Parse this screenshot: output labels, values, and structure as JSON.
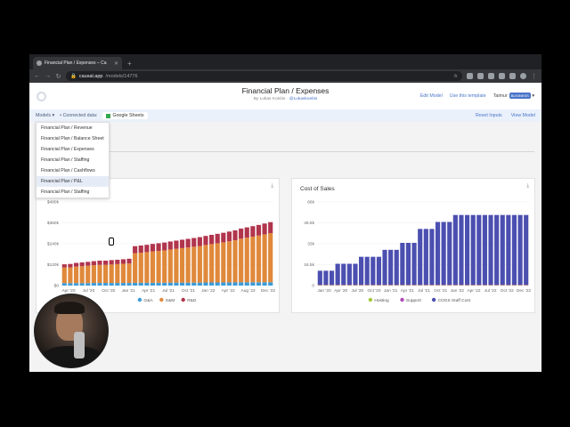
{
  "browser": {
    "tab_title": "Financial Plan / Expenses – Ca",
    "url_host": "causal.app",
    "url_path": "/models/14776"
  },
  "header": {
    "title": "Financial Plan / Expenses",
    "byline_prefix": "By Lukas Koebis · ",
    "byline_handle": "@Lukaskoebis",
    "edit_model": "Edit Model",
    "use_template": "Use this template",
    "user": "Taimur",
    "user_badge": "BUSINESS"
  },
  "toolbar": {
    "models_label": "Models",
    "connected_label": "Connected data:",
    "sheets_label": "Google Sheets",
    "reset_inputs": "Reset Inputs",
    "view_model": "View Model"
  },
  "models_menu": [
    "Financial Plan / Revenue",
    "Financial Plan / Balance Sheet",
    "Financial Plan / Expenses",
    "Financial Plan / Staffing",
    "Financial Plan / Cashflows",
    "Financial Plan / P&L",
    "Financial Plan / Staffing"
  ],
  "menu_highlight_index": 5,
  "colors": {
    "ga": "#3b9bd8",
    "sm": "#e0893b",
    "rd": "#b1344d",
    "hosting": "#a3c93a",
    "support": "#b04bb8",
    "cogs": "#4b4fb0"
  },
  "chart_data": [
    {
      "type": "bar",
      "stacked": true,
      "title": "",
      "x_ticks": [
        "Apr '20",
        "Jul '20",
        "Oct '20",
        "Jan '21",
        "Apr '21",
        "Jul '21",
        "Oct '21",
        "Jan '22",
        "Apr '22",
        "Aug '22",
        "Dec '22"
      ],
      "y_ticks": [
        "$0",
        "$120k",
        "$240k",
        "$360k",
        "$480k"
      ],
      "ylim": [
        0,
        480000
      ],
      "legend": [
        "G&A",
        "S&M",
        "R&D"
      ],
      "series": [
        {
          "name": "G&A",
          "values": [
            14000,
            14000,
            14000,
            14000,
            14000,
            15000,
            15000,
            15000,
            15000,
            15000,
            15000,
            15000,
            16000,
            16000,
            16000,
            16000,
            16000,
            16000,
            17000,
            17000,
            17000,
            17000,
            17000,
            17000,
            18000,
            18000,
            18000,
            18000,
            18000,
            18000,
            19000,
            19000,
            19000,
            19000,
            19000,
            19000
          ]
        },
        {
          "name": "S&M",
          "values": [
            90000,
            90000,
            95000,
            97000,
            100000,
            102000,
            104000,
            104000,
            106000,
            108000,
            110000,
            112000,
            170000,
            173000,
            176000,
            180000,
            183000,
            186000,
            190000,
            194000,
            198000,
            202000,
            206000,
            210000,
            215000,
            220000,
            225000,
            230000,
            236000,
            242000,
            250000,
            256000,
            262000,
            268000,
            275000,
            282000
          ]
        },
        {
          "name": "R&D",
          "values": [
            18000,
            20000,
            21000,
            22000,
            22000,
            23000,
            24000,
            24000,
            25000,
            25000,
            26000,
            27000,
            40000,
            41000,
            42000,
            43000,
            44000,
            45000,
            46000,
            47000,
            48000,
            49000,
            50000,
            51000,
            52000,
            53000,
            54000,
            55000,
            56000,
            57000,
            58000,
            59000,
            60000,
            61000,
            62000,
            63000
          ]
        }
      ]
    },
    {
      "type": "bar",
      "stacked": true,
      "title": "Cost of Sales",
      "x_ticks": [
        "Jan '20",
        "Apr '20",
        "Jul '20",
        "Oct '20",
        "Jan '21",
        "Apr '21",
        "Jul '21",
        "Oct '21",
        "Jan '22",
        "Apr '22",
        "Jul '22",
        "Oct '22",
        "Dec '22"
      ],
      "y_ticks": [
        "0",
        "16.5k",
        "33k",
        "49.5k",
        "66k"
      ],
      "ylim": [
        0,
        66000
      ],
      "legend": [
        "Hosting",
        "Support",
        "COGS Staff Cost"
      ],
      "series": [
        {
          "name": "Hosting",
          "values": [
            300,
            300,
            300,
            300,
            300,
            300,
            300,
            300,
            300,
            300,
            300,
            300,
            300,
            300,
            300,
            300,
            300,
            300,
            300,
            300,
            300,
            300,
            300,
            300,
            300,
            300,
            300,
            300,
            300,
            300,
            300,
            300,
            300,
            300,
            300,
            300
          ]
        },
        {
          "name": "Support",
          "values": [
            400,
            400,
            400,
            400,
            400,
            400,
            400,
            400,
            400,
            400,
            400,
            400,
            400,
            400,
            400,
            400,
            400,
            400,
            400,
            400,
            400,
            400,
            400,
            400,
            400,
            400,
            400,
            400,
            400,
            400,
            400,
            400,
            400,
            400,
            400,
            400
          ]
        },
        {
          "name": "COGS Staff Cost",
          "values": [
            11000,
            11000,
            11000,
            16500,
            16500,
            16500,
            16500,
            22000,
            22000,
            22000,
            22000,
            27500,
            27500,
            27500,
            33000,
            33000,
            33000,
            44000,
            44000,
            44000,
            49500,
            49500,
            49500,
            55000,
            55000,
            55000,
            55000,
            55000,
            55000,
            55000,
            55000,
            55000,
            55000,
            55000,
            55000,
            55000
          ]
        }
      ]
    }
  ]
}
